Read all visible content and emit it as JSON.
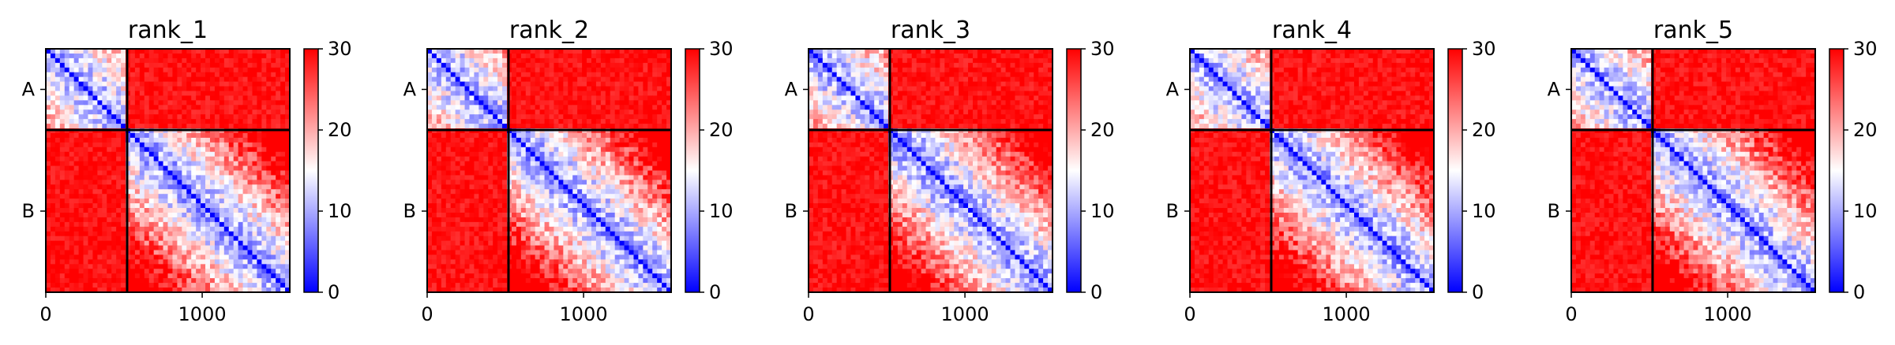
{
  "chart_data": {
    "type": "heatmap",
    "colormap": [
      "#0000ff",
      "#ffffff",
      "#ff0000"
    ],
    "colorbar": {
      "range": [
        0,
        30
      ],
      "ticks": [
        0,
        10,
        20,
        30
      ],
      "tick_labels": [
        "0",
        "10",
        "20",
        "30"
      ]
    },
    "x_range": [
      0,
      1560
    ],
    "x_ticks": [
      0,
      1000
    ],
    "x_tick_labels": [
      "0",
      "1000"
    ],
    "chains": [
      {
        "label": "A",
        "start": 0,
        "end": 520
      },
      {
        "label": "B",
        "start": 520,
        "end": 1560
      }
    ],
    "chain_boundary": 520,
    "block_means": {
      "intra_A": 10,
      "inter_chain": 28,
      "intra_B": 14,
      "diagonal": 0
    },
    "panels": [
      {
        "title": "rank_1"
      },
      {
        "title": "rank_2"
      },
      {
        "title": "rank_3"
      },
      {
        "title": "rank_4"
      },
      {
        "title": "rank_5"
      }
    ]
  }
}
